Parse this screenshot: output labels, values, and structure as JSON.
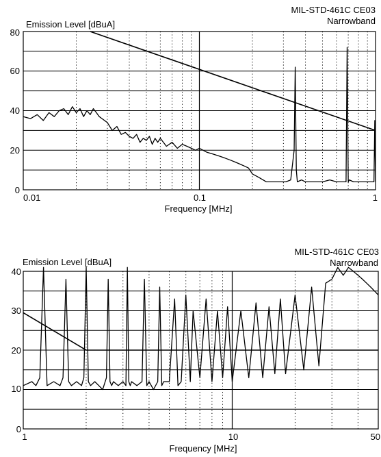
{
  "chart_data": [
    {
      "type": "line",
      "title": "MIL-STD-461C CE03",
      "subtitle": "Narrowband",
      "xlabel": "Frequency [MHz]",
      "ylabel": "Emission Level [dBuA]",
      "xscale": "log",
      "xlim": [
        0.01,
        1
      ],
      "ylim": [
        0,
        80
      ],
      "x_ticks": [
        "0.01",
        "0.1",
        "1"
      ],
      "y_ticks": [
        "0",
        "20",
        "40",
        "60",
        "80"
      ],
      "grid": true,
      "series": [
        {
          "role": "limit",
          "x": [
            0.024,
            1
          ],
          "y": [
            80,
            30
          ]
        },
        {
          "role": "measured",
          "x": [
            0.01,
            0.011,
            0.012,
            0.013,
            0.014,
            0.015,
            0.016,
            0.017,
            0.018,
            0.019,
            0.02,
            0.021,
            0.022,
            0.023,
            0.024,
            0.025,
            0.026,
            0.027,
            0.028,
            0.03,
            0.032,
            0.034,
            0.036,
            0.038,
            0.04,
            0.042,
            0.044,
            0.046,
            0.048,
            0.05,
            0.052,
            0.054,
            0.056,
            0.058,
            0.06,
            0.065,
            0.07,
            0.075,
            0.08,
            0.085,
            0.09,
            0.095,
            0.1,
            0.11,
            0.12,
            0.13,
            0.14,
            0.15,
            0.16,
            0.17,
            0.18,
            0.19,
            0.2,
            0.21,
            0.22,
            0.23,
            0.24,
            0.25,
            0.27,
            0.29,
            0.31,
            0.33,
            0.345,
            0.35,
            0.355,
            0.36,
            0.38,
            0.4,
            0.45,
            0.5,
            0.55,
            0.6,
            0.65,
            0.68,
            0.69,
            0.7,
            0.71,
            0.75,
            0.8,
            0.85,
            0.9,
            0.95,
            0.98,
            0.99,
            1.0
          ],
          "y": [
            37,
            36,
            38,
            35,
            39,
            37,
            40,
            41,
            38,
            42,
            39,
            41,
            37,
            40,
            38,
            41,
            39,
            37,
            36,
            34,
            30,
            32,
            28,
            29,
            27,
            26,
            28,
            24,
            26,
            25,
            27,
            23,
            26,
            24,
            26,
            22,
            24,
            21,
            23,
            22,
            21,
            20,
            21,
            19,
            18,
            17,
            16,
            15,
            14,
            13,
            12,
            11,
            8,
            7,
            6,
            5,
            4,
            4,
            4,
            4,
            4,
            5,
            20,
            62,
            10,
            4,
            5,
            4,
            4,
            4,
            5,
            4,
            4,
            4,
            72,
            4,
            5,
            4,
            4,
            4,
            4,
            4,
            4,
            35,
            4
          ]
        }
      ]
    },
    {
      "type": "line",
      "title": "MIL-STD-461C CE03",
      "subtitle": "Narrowband",
      "xlabel": "Frequency [MHz]",
      "ylabel": "Emission Level [dBuA]",
      "xscale": "log",
      "xlim": [
        1,
        50
      ],
      "ylim": [
        0,
        40
      ],
      "x_ticks": [
        "1",
        "10",
        "50"
      ],
      "y_ticks": [
        "0",
        "10",
        "20",
        "30",
        "40"
      ],
      "grid": true,
      "series": [
        {
          "role": "limit",
          "x": [
            1,
            2,
            50
          ],
          "y": [
            29.5,
            20,
            20
          ]
        },
        {
          "role": "measured",
          "x": [
            1.0,
            1.1,
            1.15,
            1.2,
            1.25,
            1.3,
            1.4,
            1.5,
            1.55,
            1.6,
            1.65,
            1.7,
            1.8,
            1.9,
            1.95,
            2.0,
            2.05,
            2.1,
            2.2,
            2.3,
            2.4,
            2.5,
            2.55,
            2.6,
            2.65,
            2.7,
            2.85,
            3.0,
            3.1,
            3.15,
            3.2,
            3.25,
            3.3,
            3.5,
            3.7,
            3.8,
            3.9,
            4.0,
            4.2,
            4.4,
            4.5,
            4.6,
            4.7,
            5.0,
            5.3,
            5.5,
            5.7,
            6.0,
            6.3,
            6.5,
            7.0,
            7.5,
            8.0,
            8.5,
            9.0,
            9.5,
            10.0,
            11.0,
            12.0,
            13.0,
            14.0,
            15.0,
            16.0,
            17.0,
            18.0,
            20.0,
            22.0,
            24.0,
            26.0,
            28.0,
            30.0,
            32.0,
            34.0,
            36.0,
            38.0,
            40.0,
            42.0,
            44.0,
            46.0,
            48.0,
            50.0
          ],
          "y": [
            11,
            12,
            11,
            13,
            41,
            11,
            12,
            11,
            13,
            38,
            12,
            11,
            12,
            11,
            13,
            41,
            12,
            11,
            12,
            11,
            10,
            13,
            38,
            12,
            11,
            12,
            11,
            12,
            11,
            41,
            12,
            11,
            12,
            11,
            12,
            38,
            11,
            12,
            10,
            12,
            36,
            11,
            12,
            12,
            33,
            11,
            12,
            34,
            12,
            30,
            13,
            33,
            12,
            30,
            13,
            31,
            12,
            30,
            13,
            32,
            13,
            31,
            14,
            33,
            14,
            34,
            15,
            36,
            16,
            37,
            38,
            41,
            39,
            41,
            40,
            39,
            38,
            37,
            36,
            35,
            34
          ]
        }
      ]
    }
  ]
}
